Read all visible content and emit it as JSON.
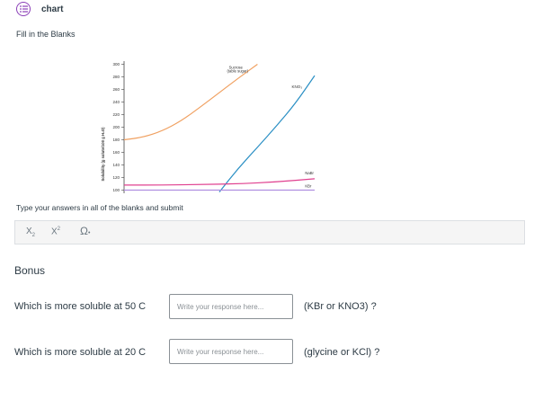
{
  "header": {
    "title": "chart",
    "icon": "list-icon",
    "icon_color": "#8b3fb8"
  },
  "instructions": "Fill in the Blanks",
  "chart_data": {
    "type": "line",
    "title": "",
    "ylabel": "Solubility (g solute/100 g H₂O)",
    "ylim": [
      95,
      305
    ],
    "yticks": [
      300,
      280,
      260,
      240,
      220,
      200,
      180,
      160,
      140,
      120,
      100
    ],
    "xlim": [
      0,
      100
    ],
    "series": [
      {
        "name": "Sucrose (table sugar)",
        "label_line1": "Sucrose",
        "label_line2": "(table sugar)",
        "color": "#f0a060",
        "x": [
          0,
          10,
          20,
          30,
          40,
          50,
          60,
          70
        ],
        "y": [
          180,
          184,
          194,
          210,
          232,
          255,
          278,
          300
        ]
      },
      {
        "name": "KNO₃",
        "color": "#2a8fc4",
        "x": [
          50,
          60,
          70,
          80,
          90,
          100
        ],
        "y": [
          97,
          135,
          168,
          202,
          238,
          282
        ]
      },
      {
        "name": "NaBr",
        "color": "#e0408f",
        "x": [
          0,
          20,
          40,
          60,
          80,
          100
        ],
        "y": [
          108,
          108,
          109,
          110,
          113,
          118
        ]
      },
      {
        "name": "KBr",
        "color": "#b08fe0",
        "x": [
          0,
          100
        ],
        "y": [
          100,
          100
        ]
      }
    ]
  },
  "type_prompt": "Type your answers in all of the blanks and submit",
  "toolbar": {
    "subscript": "X",
    "subscript_mark": "2",
    "superscript": "X",
    "superscript_mark": "2",
    "special_chars": "Ω",
    "dropdown": "•"
  },
  "bonus": "Bonus",
  "questions": [
    {
      "text": "Which is more soluble at 50 C",
      "placeholder": "Write your response here...",
      "choices": "(KBr or KNO3) ?"
    },
    {
      "text": "Which is more soluble at 20 C",
      "placeholder": "Write your response here...",
      "choices": "(glycine or KCl) ?"
    }
  ]
}
